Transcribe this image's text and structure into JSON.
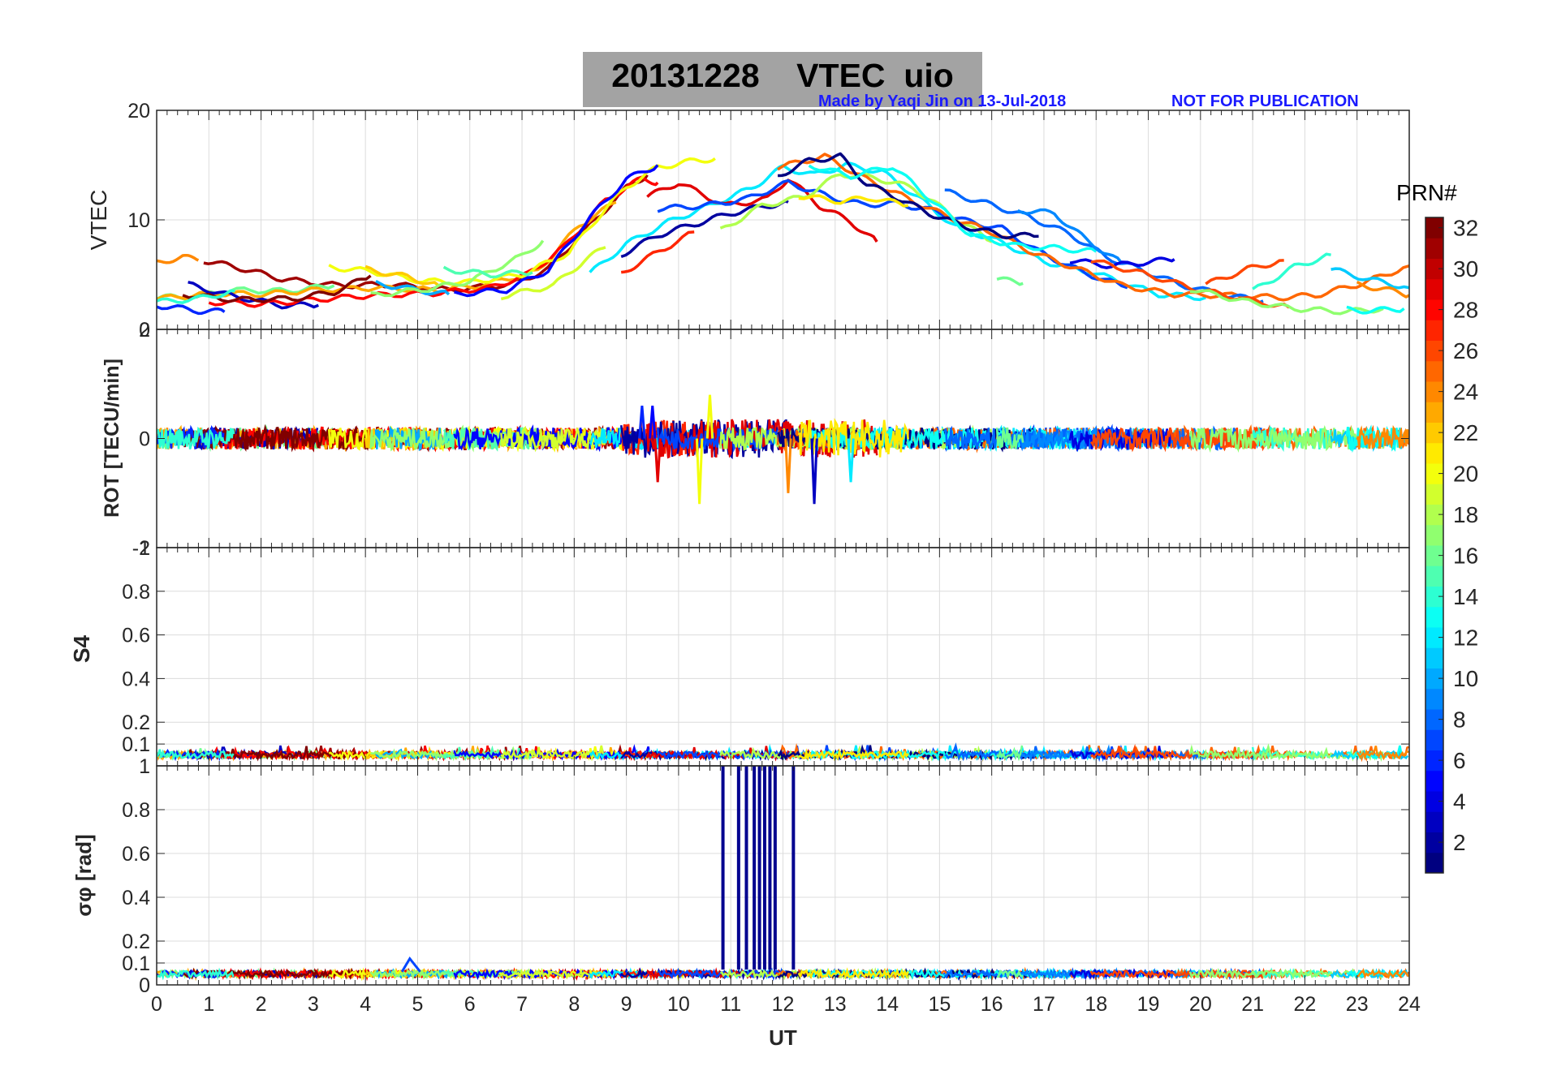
{
  "figure": {
    "date": "20131228",
    "quantity": "VTEC",
    "station": "uio",
    "title": "20131228    VTEC  uio",
    "credit": "Made by Yaqi Jin on 13-Jul-2018",
    "notice": "NOT FOR PUBLICATION",
    "colorbar_label": "PRN#"
  },
  "colors": {
    "title_box": "#a3a3a3",
    "credit_text": "#1a1aff",
    "grid": "#dcdcdc",
    "sigma_spike": "#00008f"
  },
  "chart_data": [
    {
      "type": "line",
      "panel": "vtec",
      "ylabel": "VTEC",
      "xlabel": "",
      "xlim": [
        0,
        24
      ],
      "ylim": [
        0,
        20
      ],
      "yticks": [
        0,
        10,
        20
      ],
      "grid": true,
      "series": [
        {
          "prn": 31,
          "x": [
            0.9,
            1.6,
            2.4,
            3.5,
            4.5,
            5.6,
            6.8,
            7.5,
            8.2,
            9.0,
            9.4
          ],
          "y": [
            6.3,
            5.6,
            4.6,
            4.0,
            4.1,
            3.6,
            4.1,
            5.5,
            9.0,
            12.9,
            14.1
          ]
        },
        {
          "prn": 24,
          "x": [
            0.0,
            0.5,
            0.8
          ],
          "y": [
            6.1,
            6.6,
            6.3
          ]
        },
        {
          "prn": 16,
          "x": [
            0.0,
            0.7,
            1.4,
            2.5,
            3.4
          ],
          "y": [
            2.9,
            3.0,
            3.6,
            3.5,
            4.0
          ]
        },
        {
          "prn": 23,
          "x": [
            0.0,
            1.1,
            2.0,
            3.1,
            4.2,
            5.4,
            6.2,
            7.3,
            8.1,
            8.8
          ],
          "y": [
            2.8,
            3.3,
            3.2,
            3.6,
            3.8,
            3.6,
            4.0,
            5.3,
            9.5,
            11.6
          ]
        },
        {
          "prn": 3,
          "x": [
            0.6,
            1.4,
            2.4,
            3.1
          ],
          "y": [
            4.1,
            3.1,
            2.2,
            2.2
          ]
        },
        {
          "prn": 28,
          "x": [
            1.0,
            2.0,
            3.0,
            4.1,
            5.3,
            6.4,
            7.1,
            7.8,
            8.6,
            9.3,
            9.6
          ],
          "y": [
            2.5,
            2.3,
            2.7,
            3.1,
            3.3,
            3.8,
            5.0,
            7.5,
            11.8,
            13.8,
            13.4
          ]
        },
        {
          "prn": 32,
          "x": [
            0.5,
            1.5,
            2.6,
            3.4,
            4.1
          ],
          "y": [
            3.2,
            2.7,
            2.8,
            3.4,
            4.9
          ]
        },
        {
          "prn": 6,
          "x": [
            0.0,
            0.8,
            1.3
          ],
          "y": [
            2.2,
            1.7,
            1.6
          ]
        },
        {
          "prn": 14,
          "x": [
            0.0,
            0.8,
            1.5
          ],
          "y": [
            2.5,
            2.8,
            3.5
          ]
        },
        {
          "prn": 20,
          "x": [
            3.3,
            4.1,
            5.1,
            6.0,
            7.0,
            7.9,
            8.5,
            9.0,
            9.6,
            10.3,
            10.7
          ],
          "y": [
            5.7,
            5.3,
            4.4,
            4.3,
            5.0,
            7.0,
            10.5,
            13.0,
            14.8,
            15.4,
            15.6
          ]
        },
        {
          "prn": 22,
          "x": [
            4.0,
            4.8,
            5.4
          ],
          "y": [
            5.5,
            4.8,
            4.0
          ]
        },
        {
          "prn": 10,
          "x": [
            4.2,
            5.0,
            5.6
          ],
          "y": [
            4.2,
            3.6,
            3.2
          ]
        },
        {
          "prn": 17,
          "x": [
            4.1,
            5.2,
            6.0,
            7.0,
            7.4
          ],
          "y": [
            3.1,
            3.7,
            4.4,
            6.7,
            8.1
          ]
        },
        {
          "prn": 15,
          "x": [
            5.5,
            6.4,
            7.2
          ],
          "y": [
            5.5,
            5.0,
            5.2
          ]
        },
        {
          "prn": 5,
          "x": [
            5.7,
            6.7,
            7.5,
            8.3,
            9.0,
            9.6
          ],
          "y": [
            3.2,
            3.6,
            5.4,
            10.2,
            13.7,
            15.0
          ]
        },
        {
          "prn": 19,
          "x": [
            6.6,
            7.6,
            8.2,
            8.6
          ],
          "y": [
            3.0,
            4.0,
            6.3,
            7.5
          ]
        },
        {
          "prn": 12,
          "x": [
            8.3,
            9.0,
            9.8,
            10.6,
            11.4,
            12.0,
            12.6,
            13.2,
            13.9,
            14.6,
            15.3,
            16.1,
            17.0,
            18.0,
            19.2,
            20.1
          ],
          "y": [
            5.1,
            7.8,
            9.8,
            11.3,
            12.9,
            14.8,
            14.1,
            15.0,
            14.4,
            12.0,
            9.4,
            8.1,
            6.2,
            5.1,
            3.2,
            2.9
          ]
        },
        {
          "prn": 27,
          "x": [
            8.9,
            9.4,
            10.3
          ],
          "y": [
            5.1,
            6.5,
            8.9
          ]
        },
        {
          "prn": 2,
          "x": [
            8.9,
            9.6,
            10.3,
            11.0,
            11.7,
            12.1
          ],
          "y": [
            6.8,
            8.6,
            9.6,
            10.6,
            11.3,
            11.6
          ]
        },
        {
          "prn": 29,
          "x": [
            9.4,
            10.0,
            10.9,
            11.7,
            12.1,
            12.7,
            13.3,
            13.8
          ],
          "y": [
            12.1,
            13.4,
            11.3,
            11.9,
            13.8,
            11.3,
            9.8,
            8.0
          ]
        },
        {
          "prn": 7,
          "x": [
            9.6,
            10.5,
            11.3,
            12.1,
            12.9,
            13.5,
            14.2,
            14.9,
            15.5,
            16.2,
            16.9,
            17.7,
            18.6
          ],
          "y": [
            11.0,
            11.3,
            11.9,
            13.4,
            12.1,
            11.4,
            11.5,
            10.8,
            9.9,
            9.2,
            7.1,
            5.3,
            3.8
          ]
        },
        {
          "prn": 18,
          "x": [
            10.8,
            11.6,
            12.4,
            13.1,
            13.8,
            14.5,
            15.3,
            16.0
          ],
          "y": [
            9.0,
            11.3,
            12.1,
            14.2,
            13.8,
            12.9,
            10.2,
            8.0
          ]
        },
        {
          "prn": 25,
          "x": [
            11.9,
            12.8,
            13.6,
            14.5,
            15.2,
            16.0,
            16.8,
            17.6,
            18.5,
            19.5,
            20.6,
            21.5,
            22.2,
            23.1,
            24.0
          ],
          "y": [
            14.8,
            15.8,
            13.7,
            11.7,
            10.2,
            8.9,
            7.0,
            5.6,
            4.0,
            3.2,
            3.1,
            2.9,
            3.1,
            4.2,
            5.8
          ]
        },
        {
          "prn": 1,
          "x": [
            11.9,
            12.5,
            13.1,
            13.6,
            14.2,
            14.8,
            15.5,
            16.2,
            16.9
          ],
          "y": [
            14.0,
            15.4,
            15.8,
            13.3,
            12.0,
            10.6,
            9.4,
            8.6,
            8.5
          ]
        },
        {
          "prn": 13,
          "x": [
            12.5,
            13.3,
            14.1,
            14.8,
            15.6,
            16.5,
            17.3,
            18.0
          ],
          "y": [
            15.0,
            14.0,
            14.9,
            12.0,
            8.6,
            7.6,
            7.4,
            7.1
          ]
        },
        {
          "prn": 21,
          "x": [
            12.3,
            13.1,
            13.7,
            14.4
          ],
          "y": [
            12.2,
            11.7,
            12.0,
            11.3
          ]
        },
        {
          "prn": 8,
          "x": [
            15.1,
            15.9,
            16.7,
            17.5,
            18.2,
            19.0,
            19.6,
            20.5,
            21.2
          ],
          "y": [
            12.6,
            11.5,
            10.3,
            8.7,
            6.6,
            5.2,
            4.1,
            3.1,
            2.6
          ]
        },
        {
          "prn": 9,
          "x": [
            16.5,
            17.2,
            17.8,
            18.5
          ],
          "y": [
            10.9,
            10.6,
            8.2,
            6.0
          ]
        },
        {
          "prn": 4,
          "x": [
            17.5,
            18.3,
            19.1,
            19.5
          ],
          "y": [
            6.3,
            5.8,
            6.2,
            6.4
          ]
        },
        {
          "prn": 26,
          "x": [
            17.9,
            18.9,
            19.9,
            20.9,
            21.7
          ],
          "y": [
            6.3,
            5.1,
            3.7,
            2.7,
            2.0
          ]
        },
        {
          "prn": 16,
          "x": [
            16.1,
            16.6
          ],
          "y": [
            4.6,
            4.2
          ]
        },
        {
          "prn": 26,
          "x": [
            20.1,
            20.9,
            21.6
          ],
          "y": [
            4.1,
            5.5,
            6.3
          ]
        },
        {
          "prn": 14,
          "x": [
            21.0,
            21.8,
            22.5
          ],
          "y": [
            3.5,
            5.7,
            6.8
          ]
        },
        {
          "prn": 17,
          "x": [
            19.8,
            20.8,
            21.8,
            22.8,
            23.5
          ],
          "y": [
            3.7,
            2.6,
            1.9,
            1.6,
            1.9
          ]
        },
        {
          "prn": 11,
          "x": [
            22.5,
            23.2,
            24.0
          ],
          "y": [
            5.5,
            4.6,
            3.8
          ]
        },
        {
          "prn": 13,
          "x": [
            22.8,
            23.3,
            23.9
          ],
          "y": [
            1.8,
            1.7,
            1.9
          ]
        },
        {
          "prn": 24,
          "x": [
            23.0,
            23.5,
            24.0
          ],
          "y": [
            4.1,
            3.7,
            3.1
          ]
        }
      ]
    },
    {
      "type": "line",
      "panel": "rot",
      "ylabel": "ROT [TECU/min]",
      "xlabel": "",
      "xlim": [
        0,
        24
      ],
      "ylim": [
        -2,
        2
      ],
      "yticks": [
        -2,
        0,
        2
      ],
      "grid": true,
      "baseline": 0,
      "noise_amplitude": 0.2,
      "excursions": [
        {
          "prn": 29,
          "x": 9.6,
          "y": -0.8
        },
        {
          "prn": 20,
          "x": 10.4,
          "y": -1.2
        },
        {
          "prn": 20,
          "x": 10.6,
          "y": 0.8
        },
        {
          "prn": 24,
          "x": 12.1,
          "y": -1.0
        },
        {
          "prn": 3,
          "x": 12.6,
          "y": -1.2
        },
        {
          "prn": 12,
          "x": 13.3,
          "y": -0.8
        },
        {
          "prn": 6,
          "x": 9.3,
          "y": 0.6
        },
        {
          "prn": 5,
          "x": 9.5,
          "y": 0.6
        }
      ]
    },
    {
      "type": "line",
      "panel": "s4",
      "ylabel": "S4",
      "xlabel": "",
      "xlim": [
        0,
        24
      ],
      "ylim": [
        0,
        1
      ],
      "yticks": [
        0.1,
        0.2,
        0.4,
        0.6,
        0.8,
        1
      ],
      "grid": true,
      "baseline": 0.05
    },
    {
      "type": "line",
      "panel": "sigma_phi",
      "ylabel": "σφ [rad]",
      "xlabel": "UT",
      "xlim": [
        0,
        24
      ],
      "ylim": [
        0,
        1
      ],
      "yticks": [
        0,
        0.1,
        0.2,
        0.4,
        0.6,
        0.8,
        1
      ],
      "xticks": [
        0,
        1,
        2,
        3,
        4,
        5,
        6,
        7,
        8,
        9,
        10,
        11,
        12,
        13,
        14,
        15,
        16,
        17,
        18,
        19,
        20,
        21,
        22,
        23,
        24
      ],
      "grid": true,
      "baseline": 0.05,
      "spikes": {
        "prn": 1,
        "x": [
          10.85,
          11.15,
          11.3,
          11.45,
          11.55,
          11.65,
          11.75,
          11.85,
          12.2
        ],
        "peak": 1.0
      },
      "bumps": [
        {
          "prn": 7,
          "x": 4.85,
          "y": 0.12
        }
      ]
    },
    {
      "type": "heatmap",
      "panel": "colorbar",
      "label": "PRN#",
      "range": [
        1,
        32
      ],
      "ticks": [
        2,
        4,
        6,
        8,
        10,
        12,
        14,
        16,
        18,
        20,
        22,
        24,
        26,
        28,
        30,
        32
      ]
    }
  ]
}
